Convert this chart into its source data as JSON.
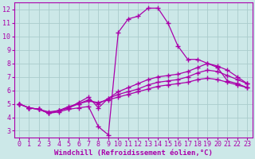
{
  "bg_color": "#cce8e8",
  "grid_color": "#aacccc",
  "line_color": "#aa00aa",
  "marker": "+",
  "markersize": 4,
  "linewidth": 0.9,
  "xlabel": "Windchill (Refroidissement éolien,°C)",
  "xlabel_fontsize": 6.5,
  "tick_fontsize": 6.0,
  "xlim": [
    -0.5,
    23.5
  ],
  "ylim": [
    2.5,
    12.5
  ],
  "xticks": [
    0,
    1,
    2,
    3,
    4,
    5,
    6,
    7,
    8,
    9,
    10,
    11,
    12,
    13,
    14,
    15,
    16,
    17,
    18,
    19,
    20,
    21,
    22,
    23
  ],
  "yticks": [
    3,
    4,
    5,
    6,
    7,
    8,
    9,
    10,
    11,
    12
  ],
  "series": [
    [
      5.0,
      4.7,
      4.6,
      4.3,
      4.4,
      4.6,
      4.7,
      4.8,
      3.3,
      2.7,
      10.3,
      11.3,
      11.5,
      12.1,
      12.1,
      11.0,
      9.3,
      8.3,
      8.3,
      8.0,
      7.7,
      6.7,
      6.5,
      6.2
    ],
    [
      5.0,
      4.7,
      4.6,
      4.3,
      4.5,
      4.7,
      5.1,
      5.5,
      4.7,
      5.4,
      5.9,
      6.2,
      6.5,
      6.8,
      7.0,
      7.1,
      7.2,
      7.4,
      7.7,
      8.0,
      7.8,
      7.5,
      7.0,
      6.5
    ],
    [
      5.0,
      4.7,
      4.6,
      4.3,
      4.5,
      4.7,
      5.0,
      5.3,
      5.0,
      5.4,
      5.7,
      5.9,
      6.1,
      6.4,
      6.6,
      6.7,
      6.8,
      7.0,
      7.3,
      7.5,
      7.4,
      7.1,
      6.8,
      6.5
    ],
    [
      5.0,
      4.7,
      4.6,
      4.4,
      4.5,
      4.8,
      5.0,
      5.2,
      5.1,
      5.3,
      5.5,
      5.7,
      5.9,
      6.1,
      6.3,
      6.4,
      6.5,
      6.6,
      6.8,
      6.9,
      6.8,
      6.6,
      6.4,
      6.2
    ]
  ]
}
